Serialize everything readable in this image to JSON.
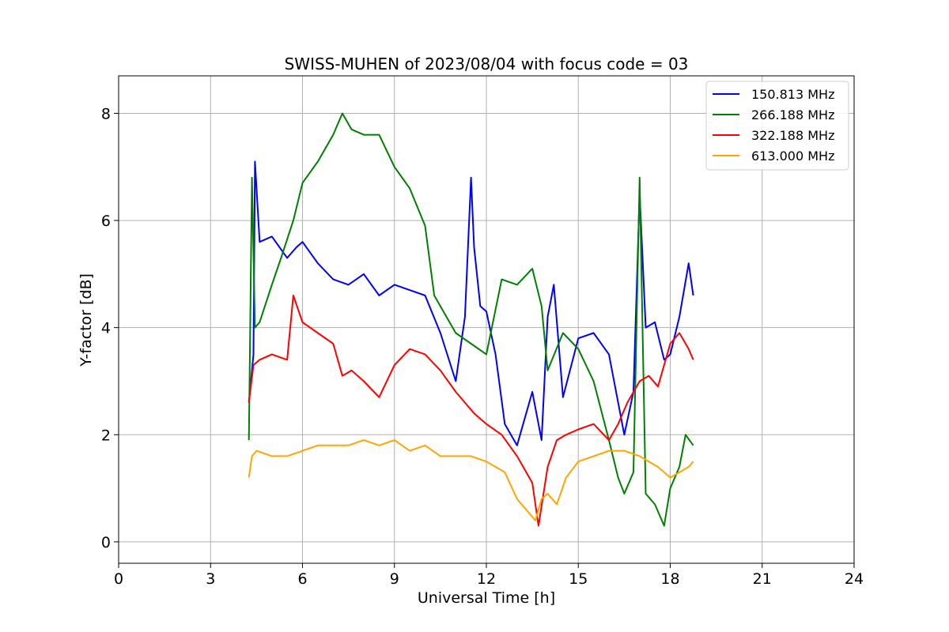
{
  "chart_data": {
    "type": "line",
    "title": "SWISS-MUHEN of 2023/08/04 with focus code = 03",
    "xlabel": "Universal Time [h]",
    "ylabel": "Y-factor [dB]",
    "xlim": [
      0,
      24
    ],
    "ylim": [
      -0.4,
      8.7
    ],
    "xticks": [
      0,
      3,
      6,
      9,
      12,
      15,
      18,
      21,
      24
    ],
    "yticks": [
      0,
      2,
      4,
      6,
      8
    ],
    "grid": true,
    "legend_position": "top-right",
    "series": [
      {
        "name": "150.813 MHz",
        "color": "#0000ff",
        "x": [
          4.25,
          4.4,
          4.45,
          4.6,
          5.0,
          5.5,
          5.8,
          6.0,
          6.5,
          7.0,
          7.5,
          8.0,
          8.5,
          9.0,
          9.5,
          10.0,
          10.5,
          11.0,
          11.3,
          11.5,
          11.6,
          11.8,
          12.0,
          12.3,
          12.6,
          13.0,
          13.5,
          13.8,
          14.0,
          14.2,
          14.5,
          15.0,
          15.5,
          16.0,
          16.5,
          16.8,
          17.0,
          17.2,
          17.5,
          17.8,
          18.0,
          18.3,
          18.6,
          18.75
        ],
        "y": [
          2.6,
          3.5,
          7.1,
          5.6,
          5.7,
          5.3,
          5.5,
          5.6,
          5.2,
          4.9,
          4.8,
          5.0,
          4.6,
          4.8,
          4.7,
          4.6,
          3.9,
          3.0,
          4.2,
          6.8,
          5.5,
          4.4,
          4.3,
          3.5,
          2.2,
          1.8,
          2.8,
          1.9,
          4.2,
          4.8,
          2.7,
          3.8,
          3.9,
          3.5,
          2.0,
          2.8,
          6.5,
          4.0,
          4.1,
          3.4,
          3.5,
          4.2,
          5.2,
          4.6
        ]
      },
      {
        "name": "266.188 MHz",
        "color": "#008000",
        "x": [
          4.25,
          4.35,
          4.45,
          4.6,
          5.0,
          5.3,
          5.7,
          6.0,
          6.5,
          7.0,
          7.3,
          7.6,
          8.0,
          8.5,
          9.0,
          9.5,
          10.0,
          10.3,
          10.7,
          11.0,
          11.5,
          12.0,
          12.5,
          13.0,
          13.5,
          13.8,
          14.0,
          14.5,
          15.0,
          15.5,
          16.0,
          16.3,
          16.5,
          16.8,
          17.0,
          17.2,
          17.5,
          17.8,
          18.0,
          18.3,
          18.5,
          18.75
        ],
        "y": [
          1.9,
          6.8,
          4.0,
          4.1,
          4.8,
          5.3,
          6.0,
          6.7,
          7.1,
          7.6,
          8.0,
          7.7,
          7.6,
          7.6,
          7.0,
          6.6,
          5.9,
          4.6,
          4.2,
          3.9,
          3.7,
          3.5,
          4.9,
          4.8,
          5.1,
          4.4,
          3.2,
          3.9,
          3.6,
          3.0,
          1.9,
          1.2,
          0.9,
          1.3,
          6.8,
          0.9,
          0.7,
          0.3,
          1.0,
          1.4,
          2.0,
          1.8
        ]
      },
      {
        "name": "322.188 MHz",
        "color": "#ff0000",
        "x": [
          4.25,
          4.4,
          4.6,
          5.0,
          5.5,
          5.7,
          6.0,
          6.5,
          7.0,
          7.3,
          7.6,
          8.0,
          8.5,
          9.0,
          9.5,
          10.0,
          10.5,
          11.0,
          11.3,
          11.6,
          12.0,
          12.5,
          13.0,
          13.5,
          13.7,
          14.0,
          14.3,
          14.6,
          15.0,
          15.5,
          16.0,
          16.3,
          16.6,
          17.0,
          17.3,
          17.6,
          18.0,
          18.3,
          18.6,
          18.75
        ],
        "y": [
          2.6,
          3.3,
          3.4,
          3.5,
          3.4,
          4.6,
          4.1,
          3.9,
          3.7,
          3.1,
          3.2,
          3.0,
          2.7,
          3.3,
          3.6,
          3.5,
          3.2,
          2.8,
          2.6,
          2.4,
          2.2,
          2.0,
          1.6,
          1.1,
          0.3,
          1.4,
          1.9,
          2.0,
          2.1,
          2.2,
          1.9,
          2.2,
          2.6,
          3.0,
          3.1,
          2.9,
          3.7,
          3.9,
          3.6,
          3.4
        ]
      },
      {
        "name": "613.000 MHz",
        "color": "#ffa500",
        "x": [
          4.25,
          4.35,
          4.5,
          5.0,
          5.5,
          6.0,
          6.5,
          7.0,
          7.5,
          8.0,
          8.5,
          9.0,
          9.5,
          10.0,
          10.5,
          11.0,
          11.5,
          12.0,
          12.3,
          12.6,
          13.0,
          13.3,
          13.6,
          13.8,
          14.0,
          14.3,
          14.6,
          15.0,
          15.5,
          16.0,
          16.5,
          17.0,
          17.3,
          17.6,
          18.0,
          18.3,
          18.6,
          18.75
        ],
        "y": [
          1.2,
          1.6,
          1.7,
          1.6,
          1.6,
          1.7,
          1.8,
          1.8,
          1.8,
          1.9,
          1.8,
          1.9,
          1.7,
          1.8,
          1.6,
          1.6,
          1.6,
          1.5,
          1.4,
          1.3,
          0.8,
          0.6,
          0.4,
          0.8,
          0.9,
          0.7,
          1.2,
          1.5,
          1.6,
          1.7,
          1.7,
          1.6,
          1.5,
          1.4,
          1.2,
          1.3,
          1.4,
          1.5
        ]
      }
    ]
  }
}
